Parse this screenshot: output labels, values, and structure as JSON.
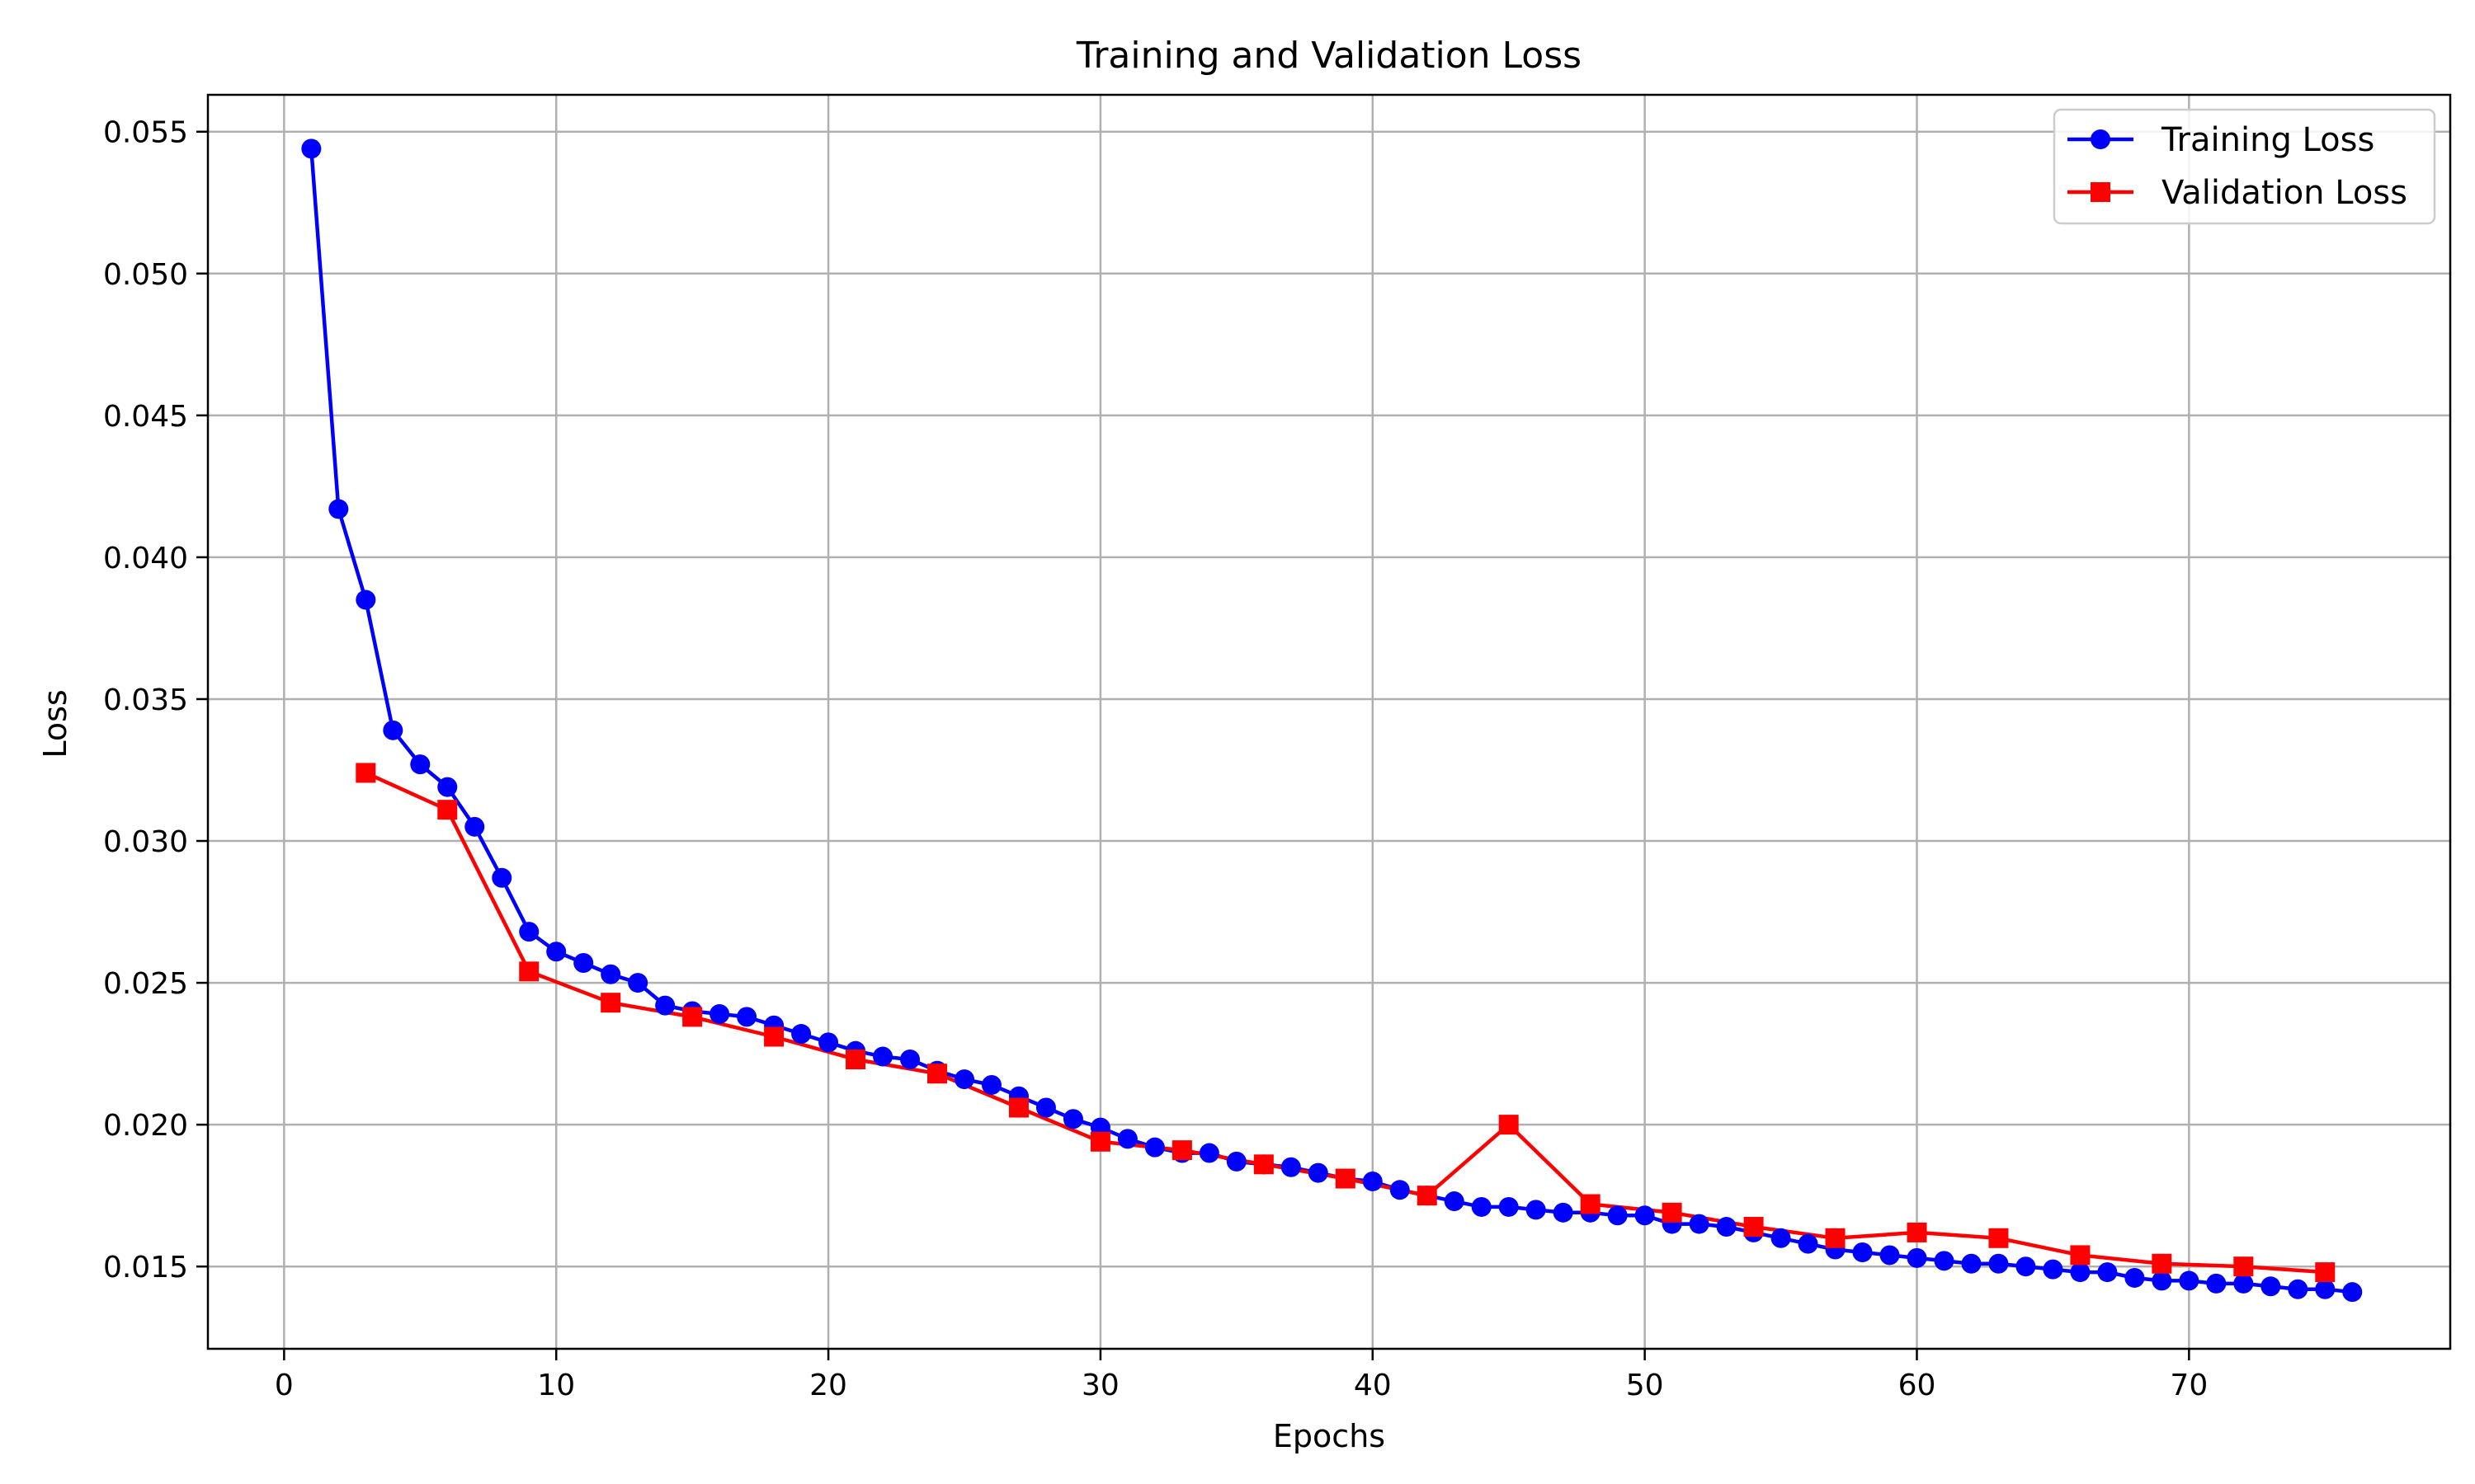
{
  "chart_data": {
    "type": "line",
    "title": "Training and Validation Loss",
    "xlabel": "Epochs",
    "ylabel": "Loss",
    "xlim": [
      -2.8,
      79.6
    ],
    "ylim": [
      0.0121,
      0.0563
    ],
    "xticks": [
      0,
      10,
      20,
      30,
      40,
      50,
      60,
      70
    ],
    "yticks": [
      0.015,
      0.02,
      0.025,
      0.03,
      0.035,
      0.04,
      0.045,
      0.05,
      0.055
    ],
    "ytick_labels": [
      "0.015",
      "0.020",
      "0.025",
      "0.030",
      "0.035",
      "0.040",
      "0.045",
      "0.050",
      "0.055"
    ],
    "grid": true,
    "legend_position": "top-right",
    "series": [
      {
        "name": "Training Loss",
        "color": "#0000ff",
        "marker": "circle",
        "x": [
          1,
          2,
          3,
          4,
          5,
          6,
          7,
          8,
          9,
          10,
          11,
          12,
          13,
          14,
          15,
          16,
          17,
          18,
          19,
          20,
          21,
          22,
          23,
          24,
          25,
          26,
          27,
          28,
          29,
          30,
          31,
          32,
          33,
          34,
          35,
          36,
          37,
          38,
          39,
          40,
          41,
          42,
          43,
          44,
          45,
          46,
          47,
          48,
          49,
          50,
          51,
          52,
          53,
          54,
          55,
          56,
          57,
          58,
          59,
          60,
          61,
          62,
          63,
          64,
          65,
          66,
          67,
          68,
          69,
          70,
          71,
          72,
          73,
          74,
          75,
          76
        ],
        "values": [
          0.0544,
          0.0417,
          0.0385,
          0.0339,
          0.0327,
          0.0319,
          0.0305,
          0.0287,
          0.0268,
          0.0261,
          0.0257,
          0.0253,
          0.025,
          0.0242,
          0.024,
          0.0239,
          0.0238,
          0.0235,
          0.0232,
          0.0229,
          0.0226,
          0.0224,
          0.0223,
          0.0219,
          0.0216,
          0.0214,
          0.021,
          0.0206,
          0.0202,
          0.0199,
          0.0195,
          0.0192,
          0.019,
          0.019,
          0.0187,
          0.0186,
          0.0185,
          0.0183,
          0.0181,
          0.018,
          0.0177,
          0.0175,
          0.0173,
          0.0171,
          0.0171,
          0.017,
          0.0169,
          0.0169,
          0.0168,
          0.0168,
          0.0165,
          0.0165,
          0.0164,
          0.0162,
          0.016,
          0.0158,
          0.0156,
          0.0155,
          0.0154,
          0.0153,
          0.0152,
          0.0151,
          0.0151,
          0.015,
          0.0149,
          0.0148,
          0.0148,
          0.0146,
          0.0145,
          0.0145,
          0.0144,
          0.0144,
          0.0143,
          0.0142,
          0.0142,
          0.0141
        ]
      },
      {
        "name": "Validation Loss",
        "color": "#ff0000",
        "marker": "square",
        "x": [
          3,
          6,
          9,
          12,
          15,
          18,
          21,
          24,
          27,
          30,
          33,
          36,
          39,
          42,
          45,
          48,
          51,
          54,
          57,
          60,
          63,
          66,
          69,
          72,
          75
        ],
        "values": [
          0.0324,
          0.0311,
          0.0254,
          0.0243,
          0.0238,
          0.0231,
          0.0223,
          0.0218,
          0.0206,
          0.0194,
          0.0191,
          0.0186,
          0.0181,
          0.0175,
          0.02,
          0.0172,
          0.0169,
          0.0164,
          0.016,
          0.0162,
          0.016,
          0.0154,
          0.0151,
          0.015,
          0.0148
        ]
      }
    ]
  }
}
